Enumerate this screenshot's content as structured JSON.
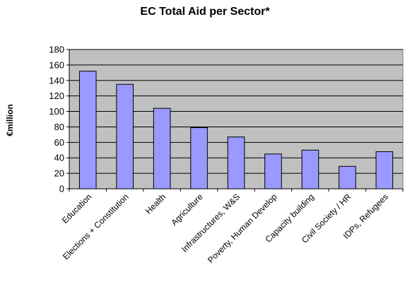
{
  "chart_data": {
    "type": "bar",
    "title": "EC Total Aid per Sector*",
    "xlabel": "",
    "ylabel": "€million",
    "ylim": [
      0,
      180
    ],
    "yticks": [
      0,
      20,
      40,
      60,
      80,
      100,
      120,
      140,
      160,
      180
    ],
    "grid": true,
    "legend": "none",
    "categories": [
      "Education",
      "Elections + Constitution",
      "Health",
      "Agriculture",
      "Infrastructures, W&S",
      "Poverty, Human Develop",
      "Capacity building",
      "Civil Society / HR",
      "IDPs, Refugees"
    ],
    "values": [
      152,
      135,
      104,
      79,
      67,
      45,
      50,
      29,
      48
    ],
    "colors": {
      "plot_background": "#c0c0c0",
      "bar_fill": "#9999ff",
      "bar_stroke": "#000000",
      "gridline": "#000000"
    }
  }
}
